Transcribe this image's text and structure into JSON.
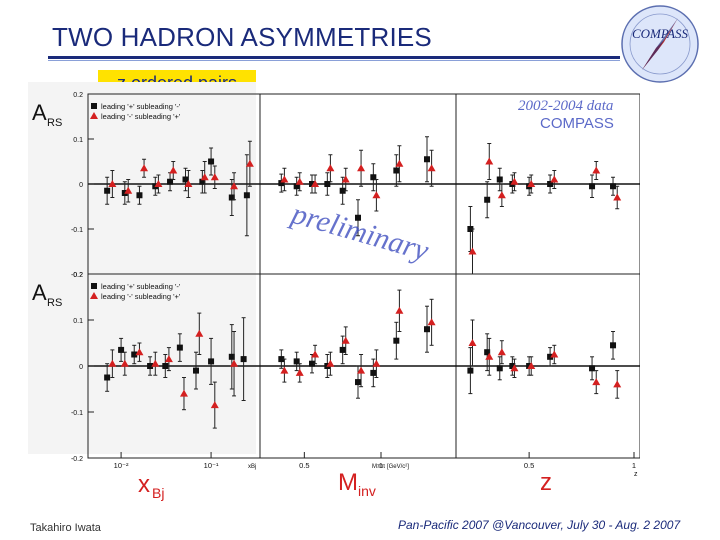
{
  "slide": {
    "title": "TWO HADRON ASYMMETRIES",
    "subtitle": "z ordered pairs",
    "logo_text": "COMPASS",
    "footer_left": "Takahiro Iwata",
    "footer_right": "Pan-Pacific 2007 @Vancouver, July 30 - Aug. 2 2007"
  },
  "colors": {
    "title": "#1a2a7a",
    "highlight": "#ffe200",
    "series_plus_minus": "#111111",
    "series_minus_plus": "#d42020",
    "watermark": "#3344bb",
    "axis_label": "#d42020"
  },
  "chart_data": {
    "type": "scatter",
    "stamp": [
      "2002-2004 data",
      "COMPASS"
    ],
    "watermark": "preliminary",
    "panel_labels": {
      "xbj": "xBj",
      "minv": "Minv",
      "z": "z"
    },
    "axis_units": {
      "xbj": "xBj",
      "minv": "Mππ [GeV/c²]",
      "z": "z"
    },
    "rows": [
      {
        "ylabel": "ARS",
        "ylim": [
          -0.2,
          0.2
        ],
        "yticks": [
          "0.2",
          "0.1",
          "0",
          "-0.1",
          "-0.2"
        ],
        "series": [
          {
            "name": "leading '+' subleading '-'",
            "marker": "square",
            "xbj": [
              {
                "x": 0.007,
                "y": -0.015,
                "e": 0.03
              },
              {
                "x": 0.011,
                "y": -0.02,
                "e": 0.025
              },
              {
                "x": 0.016,
                "y": -0.025,
                "e": 0.02
              },
              {
                "x": 0.024,
                "y": -0.005,
                "e": 0.02
              },
              {
                "x": 0.035,
                "y": 0.005,
                "e": 0.02
              },
              {
                "x": 0.052,
                "y": 0.01,
                "e": 0.025
              },
              {
                "x": 0.08,
                "y": 0.005,
                "e": 0.025
              },
              {
                "x": 0.1,
                "y": 0.05,
                "e": 0.03
              },
              {
                "x": 0.17,
                "y": -0.03,
                "e": 0.04
              },
              {
                "x": 0.25,
                "y": -0.025,
                "e": 0.09
              }
            ],
            "minv": [
              {
                "x": 0.35,
                "y": 0.002,
                "e": 0.02
              },
              {
                "x": 0.45,
                "y": -0.005,
                "e": 0.02
              },
              {
                "x": 0.55,
                "y": 0.0,
                "e": 0.02
              },
              {
                "x": 0.65,
                "y": 0.0,
                "e": 0.025
              },
              {
                "x": 0.75,
                "y": -0.015,
                "e": 0.03
              },
              {
                "x": 0.85,
                "y": -0.075,
                "e": 0.04
              },
              {
                "x": 0.95,
                "y": 0.015,
                "e": 0.03
              },
              {
                "x": 1.1,
                "y": 0.03,
                "e": 0.035
              },
              {
                "x": 1.3,
                "y": 0.055,
                "e": 0.05
              }
            ],
            "z": [
              {
                "x": 0.22,
                "y": -0.1,
                "e": 0.05
              },
              {
                "x": 0.3,
                "y": -0.035,
                "e": 0.04
              },
              {
                "x": 0.36,
                "y": 0.01,
                "e": 0.025
              },
              {
                "x": 0.42,
                "y": 0.0,
                "e": 0.02
              },
              {
                "x": 0.5,
                "y": -0.005,
                "e": 0.02
              },
              {
                "x": 0.6,
                "y": 0.0,
                "e": 0.02
              },
              {
                "x": 0.8,
                "y": -0.005,
                "e": 0.025
              },
              {
                "x": 0.9,
                "y": -0.005,
                "e": 0.02
              }
            ]
          },
          {
            "name": "leading '-' subleading '+'",
            "marker": "triangle",
            "xbj": [
              {
                "x": 0.008,
                "y": 0.0,
                "e": 0.03
              },
              {
                "x": 0.012,
                "y": -0.015,
                "e": 0.025
              },
              {
                "x": 0.018,
                "y": 0.035,
                "e": 0.02
              },
              {
                "x": 0.026,
                "y": 0.0,
                "e": 0.02
              },
              {
                "x": 0.038,
                "y": 0.03,
                "e": 0.02
              },
              {
                "x": 0.056,
                "y": 0.0,
                "e": 0.03
              },
              {
                "x": 0.085,
                "y": 0.015,
                "e": 0.035
              },
              {
                "x": 0.11,
                "y": 0.015,
                "e": 0.025
              },
              {
                "x": 0.18,
                "y": -0.005,
                "e": 0.03
              },
              {
                "x": 0.27,
                "y": 0.045,
                "e": 0.05
              }
            ],
            "minv": [
              {
                "x": 0.37,
                "y": 0.01,
                "e": 0.025
              },
              {
                "x": 0.47,
                "y": 0.005,
                "e": 0.02
              },
              {
                "x": 0.57,
                "y": 0.0,
                "e": 0.02
              },
              {
                "x": 0.67,
                "y": 0.035,
                "e": 0.03
              },
              {
                "x": 0.77,
                "y": 0.01,
                "e": 0.025
              },
              {
                "x": 0.87,
                "y": 0.035,
                "e": 0.04
              },
              {
                "x": 0.97,
                "y": -0.025,
                "e": 0.035
              },
              {
                "x": 1.12,
                "y": 0.045,
                "e": 0.04
              },
              {
                "x": 1.33,
                "y": 0.035,
                "e": 0.04
              }
            ],
            "z": [
              {
                "x": 0.23,
                "y": -0.15,
                "e": 0.05
              },
              {
                "x": 0.31,
                "y": 0.05,
                "e": 0.04
              },
              {
                "x": 0.37,
                "y": -0.025,
                "e": 0.025
              },
              {
                "x": 0.43,
                "y": 0.005,
                "e": 0.02
              },
              {
                "x": 0.51,
                "y": 0.0,
                "e": 0.02
              },
              {
                "x": 0.62,
                "y": 0.01,
                "e": 0.02
              },
              {
                "x": 0.82,
                "y": 0.03,
                "e": 0.02
              },
              {
                "x": 0.92,
                "y": -0.03,
                "e": 0.025
              }
            ]
          }
        ]
      },
      {
        "ylabel": "ARS",
        "ylim": [
          -0.2,
          0.2
        ],
        "yticks": [
          "0.2",
          "0.1",
          "0",
          "-0.1",
          "-0.2"
        ],
        "series": [
          {
            "name": "leading '+' subleading '-'",
            "marker": "square",
            "xbj": [
              {
                "x": 0.007,
                "y": -0.025,
                "e": 0.03
              },
              {
                "x": 0.01,
                "y": 0.035,
                "e": 0.025
              },
              {
                "x": 0.014,
                "y": 0.025,
                "e": 0.02
              },
              {
                "x": 0.021,
                "y": 0.0,
                "e": 0.02
              },
              {
                "x": 0.031,
                "y": 0.0,
                "e": 0.025
              },
              {
                "x": 0.045,
                "y": 0.04,
                "e": 0.03
              },
              {
                "x": 0.068,
                "y": -0.01,
                "e": 0.04
              },
              {
                "x": 0.1,
                "y": 0.01,
                "e": 0.05
              },
              {
                "x": 0.17,
                "y": 0.02,
                "e": 0.07
              },
              {
                "x": 0.23,
                "y": 0.015,
                "e": 0.09
              }
            ],
            "minv": [
              {
                "x": 0.35,
                "y": 0.015,
                "e": 0.02
              },
              {
                "x": 0.45,
                "y": 0.01,
                "e": 0.02
              },
              {
                "x": 0.55,
                "y": 0.005,
                "e": 0.02
              },
              {
                "x": 0.65,
                "y": 0.0,
                "e": 0.025
              },
              {
                "x": 0.75,
                "y": 0.035,
                "e": 0.03
              },
              {
                "x": 0.85,
                "y": -0.035,
                "e": 0.035
              },
              {
                "x": 0.95,
                "y": -0.015,
                "e": 0.03
              },
              {
                "x": 1.1,
                "y": 0.055,
                "e": 0.04
              },
              {
                "x": 1.3,
                "y": 0.08,
                "e": 0.05
              }
            ],
            "z": [
              {
                "x": 0.22,
                "y": -0.01,
                "e": 0.05
              },
              {
                "x": 0.3,
                "y": 0.03,
                "e": 0.04
              },
              {
                "x": 0.36,
                "y": -0.005,
                "e": 0.025
              },
              {
                "x": 0.42,
                "y": 0.0,
                "e": 0.02
              },
              {
                "x": 0.5,
                "y": 0.0,
                "e": 0.02
              },
              {
                "x": 0.6,
                "y": 0.02,
                "e": 0.02
              },
              {
                "x": 0.8,
                "y": -0.005,
                "e": 0.025
              },
              {
                "x": 0.9,
                "y": 0.045,
                "e": 0.03
              }
            ]
          },
          {
            "name": "leading '-' subleading '+'",
            "marker": "triangle",
            "xbj": [
              {
                "x": 0.008,
                "y": 0.005,
                "e": 0.03
              },
              {
                "x": 0.011,
                "y": 0.005,
                "e": 0.025
              },
              {
                "x": 0.016,
                "y": 0.03,
                "e": 0.02
              },
              {
                "x": 0.024,
                "y": 0.005,
                "e": 0.025
              },
              {
                "x": 0.034,
                "y": 0.015,
                "e": 0.025
              },
              {
                "x": 0.05,
                "y": -0.06,
                "e": 0.035
              },
              {
                "x": 0.074,
                "y": 0.07,
                "e": 0.045
              },
              {
                "x": 0.11,
                "y": -0.085,
                "e": 0.05
              },
              {
                "x": 0.18,
                "y": 0.005,
                "e": 0.07
              }
            ],
            "minv": [
              {
                "x": 0.37,
                "y": -0.01,
                "e": 0.025
              },
              {
                "x": 0.47,
                "y": -0.015,
                "e": 0.02
              },
              {
                "x": 0.57,
                "y": 0.025,
                "e": 0.02
              },
              {
                "x": 0.67,
                "y": 0.005,
                "e": 0.025
              },
              {
                "x": 0.77,
                "y": 0.055,
                "e": 0.03
              },
              {
                "x": 0.87,
                "y": -0.01,
                "e": 0.035
              },
              {
                "x": 0.97,
                "y": 0.005,
                "e": 0.03
              },
              {
                "x": 1.12,
                "y": 0.12,
                "e": 0.045
              },
              {
                "x": 1.33,
                "y": 0.095,
                "e": 0.05
              }
            ],
            "z": [
              {
                "x": 0.23,
                "y": 0.05,
                "e": 0.05
              },
              {
                "x": 0.31,
                "y": 0.02,
                "e": 0.04
              },
              {
                "x": 0.37,
                "y": 0.03,
                "e": 0.025
              },
              {
                "x": 0.43,
                "y": -0.005,
                "e": 0.02
              },
              {
                "x": 0.51,
                "y": 0.0,
                "e": 0.02
              },
              {
                "x": 0.62,
                "y": 0.025,
                "e": 0.02
              },
              {
                "x": 0.82,
                "y": -0.035,
                "e": 0.025
              },
              {
                "x": 0.92,
                "y": -0.04,
                "e": 0.03
              }
            ]
          }
        ]
      }
    ],
    "xbj_axis": {
      "scale": "log",
      "xlim": [
        0.005,
        0.3
      ],
      "ticks": [
        {
          "v": 0.01,
          "label": "10⁻²"
        },
        {
          "v": 0.1,
          "label": "10⁻¹"
        }
      ]
    },
    "minv_axis": {
      "scale": "linear",
      "xlim": [
        0.25,
        1.45
      ],
      "ticks": [
        {
          "v": 0.5,
          "label": "0.5"
        },
        {
          "v": 1.0,
          "label": "1"
        }
      ]
    },
    "z_axis": {
      "scale": "linear",
      "xlim": [
        0.18,
        1.0
      ],
      "ticks": [
        {
          "v": 0.5,
          "label": "0.5"
        },
        {
          "v": 1.0,
          "label": "1"
        }
      ]
    }
  }
}
